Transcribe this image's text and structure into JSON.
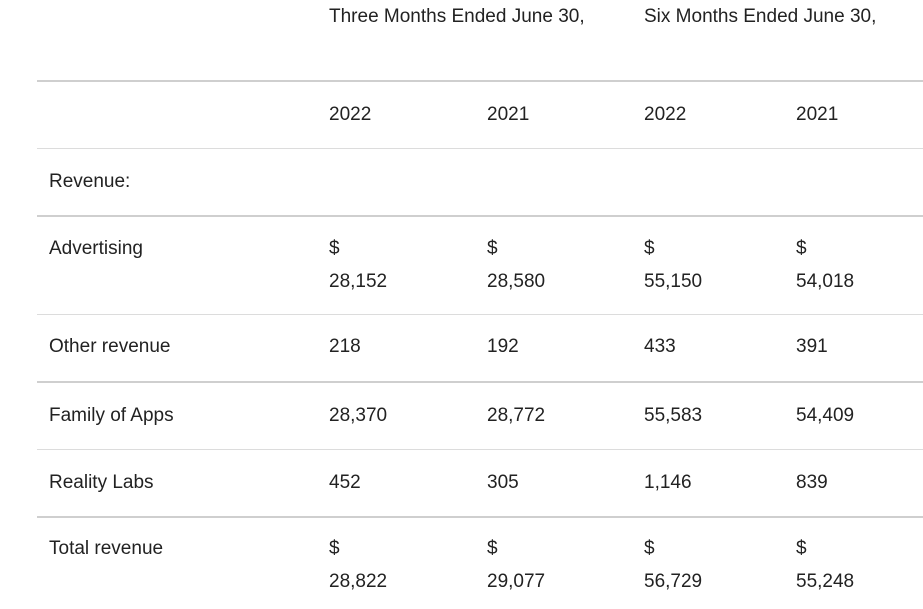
{
  "header": {
    "three_months": "Three Months Ended June 30,",
    "six_months": "Six Months Ended June 30,"
  },
  "years": [
    "2022",
    "2021",
    "2022",
    "2021"
  ],
  "section_label": "Revenue:",
  "currency_symbol": "$",
  "rows": [
    {
      "label": "Advertising",
      "values": [
        "28,152",
        "28,580",
        "55,150",
        "54,018"
      ],
      "currency": true
    },
    {
      "label": "Other revenue",
      "values": [
        "218",
        "192",
        "433",
        "391"
      ],
      "currency": false
    },
    {
      "label": "Family of Apps",
      "values": [
        "28,370",
        "28,772",
        "55,583",
        "54,409"
      ],
      "currency": false
    },
    {
      "label": "Reality Labs",
      "values": [
        "452",
        "305",
        "1,146",
        "839"
      ],
      "currency": false
    },
    {
      "label": "Total revenue",
      "values": [
        "28,822",
        "29,077",
        "56,729",
        "55,248"
      ],
      "currency": true
    }
  ]
}
